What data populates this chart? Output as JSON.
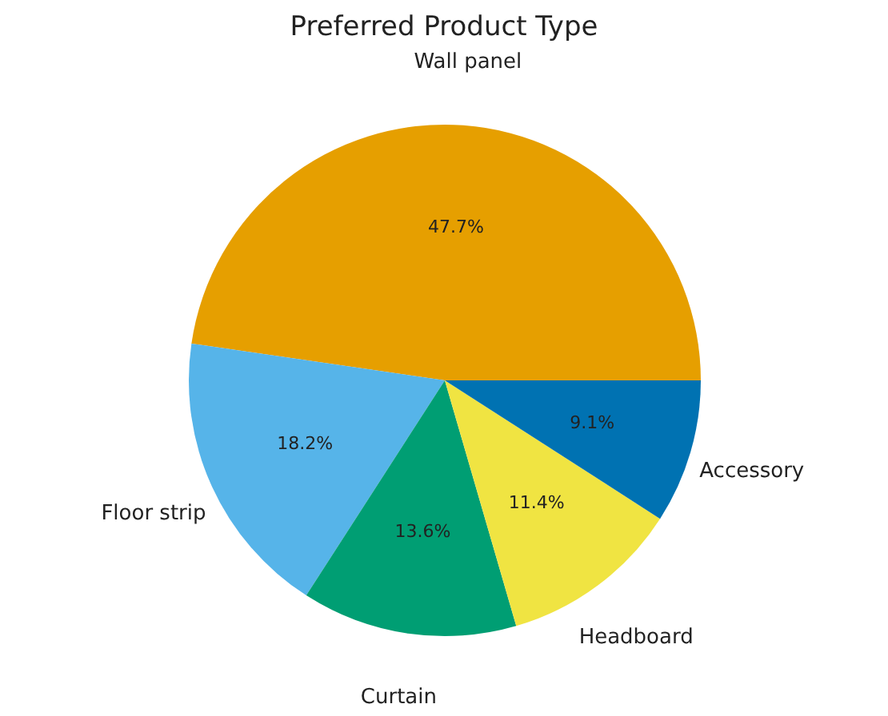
{
  "chart_data": {
    "type": "pie",
    "title": "Preferred Product Type",
    "categories": [
      "Wall panel",
      "Floor strip",
      "Curtain",
      "Headboard",
      "Accessory"
    ],
    "values": [
      47.7,
      18.2,
      13.6,
      11.4,
      9.1
    ],
    "value_labels": [
      "47.7%",
      "18.2%",
      "13.6%",
      "11.4%",
      "9.1%"
    ],
    "colors": [
      "#e69f00",
      "#56b4e9",
      "#009e73",
      "#f0e442",
      "#0072b2"
    ],
    "legend": false
  }
}
